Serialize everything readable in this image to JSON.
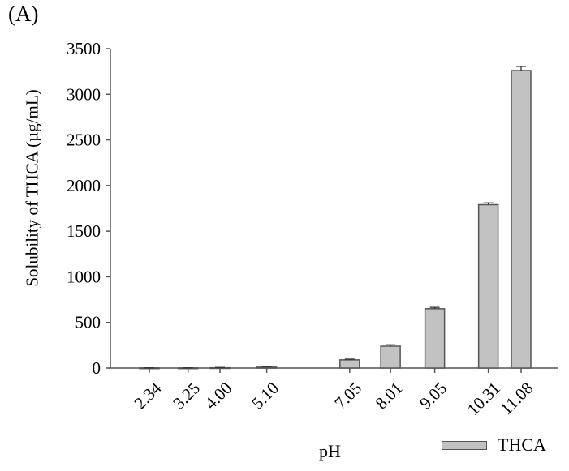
{
  "panel_label": "(A)",
  "chart_data": {
    "type": "bar",
    "title": "",
    "xlabel": "pH",
    "ylabel": "Solubility of THCA (µg/mL)",
    "ylim": [
      0,
      3500
    ],
    "yticks": [
      0,
      500,
      1000,
      1500,
      2000,
      2500,
      3000,
      3500
    ],
    "grid": false,
    "legend_position": "bottom-right",
    "categories": [
      "2.34",
      "3.25",
      "4.00",
      "5.10",
      "7.05",
      "8.01",
      "9.05",
      "10.31",
      "11.08"
    ],
    "category_positions": [
      2.34,
      3.25,
      4.0,
      5.1,
      7.05,
      8.01,
      9.05,
      10.31,
      11.08
    ],
    "series": [
      {
        "name": "THCA",
        "color": "#c2c2c2",
        "values": [
          1,
          1,
          3,
          10,
          90,
          240,
          650,
          1790,
          3260
        ],
        "errors": [
          1,
          1,
          4,
          6,
          8,
          15,
          15,
          20,
          45
        ]
      }
    ]
  },
  "legend": {
    "label": "THCA",
    "color": "#c2c2c2"
  }
}
